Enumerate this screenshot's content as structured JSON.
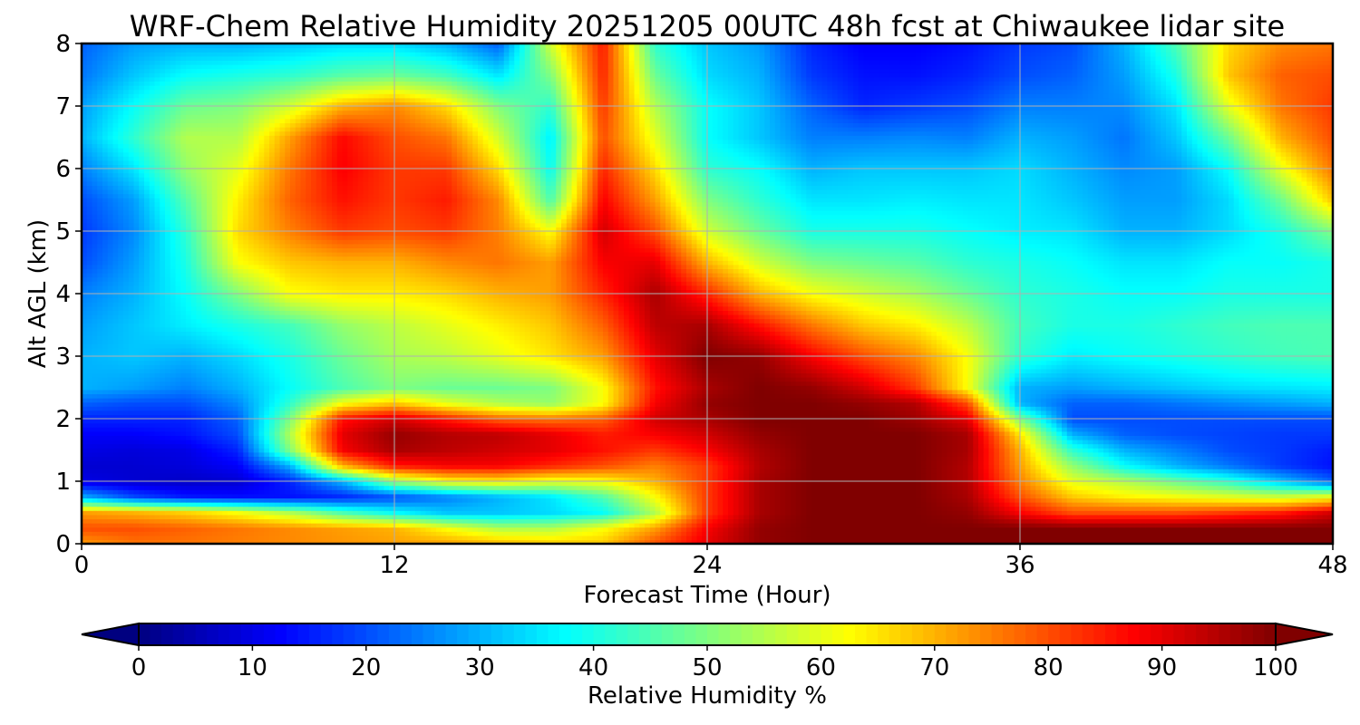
{
  "chart_data": {
    "type": "heatmap",
    "title": "WRF-Chem Relative Humidity 20251205 00UTC 48h fcst at Chiwaukee lidar site",
    "xlabel": "Forecast Time (Hour)",
    "ylabel": "Alt AGL (km)",
    "xlim": [
      0,
      48
    ],
    "ylim": [
      0,
      8
    ],
    "xticks": [
      0,
      12,
      24,
      36,
      48
    ],
    "yticks": [
      0,
      1,
      2,
      3,
      4,
      5,
      6,
      7,
      8
    ],
    "grid": true,
    "colorbar": {
      "label": "Relative Humidity %",
      "orientation": "horizontal",
      "range": [
        0,
        100
      ],
      "ticks": [
        0,
        10,
        20,
        30,
        40,
        50,
        60,
        70,
        80,
        90,
        100
      ],
      "extend": "both",
      "colormap": "jet"
    },
    "z_units": "%",
    "x": [
      0,
      2,
      4,
      6,
      8,
      10,
      12,
      14,
      16,
      18,
      20,
      22,
      24,
      26,
      28,
      30,
      32,
      34,
      36,
      38,
      40,
      42,
      44,
      46,
      48
    ],
    "y": [
      0,
      0.25,
      0.5,
      0.75,
      1,
      1.25,
      1.5,
      1.75,
      2,
      2.25,
      2.5,
      3,
      3.5,
      4,
      4.5,
      5,
      5.5,
      6,
      6.5,
      7,
      7.5,
      8
    ],
    "z": [
      [
        72,
        76,
        76,
        75,
        74,
        73,
        72,
        72,
        70,
        68,
        68,
        80,
        90,
        98,
        100,
        100,
        100,
        100,
        100,
        100,
        100,
        100,
        100,
        100,
        100
      ],
      [
        80,
        80,
        78,
        76,
        74,
        72,
        70,
        62,
        55,
        55,
        62,
        72,
        88,
        98,
        100,
        100,
        100,
        100,
        100,
        100,
        100,
        100,
        100,
        100,
        100
      ],
      [
        72,
        70,
        67,
        62,
        55,
        45,
        38,
        32,
        32,
        34,
        38,
        55,
        82,
        96,
        100,
        100,
        100,
        98,
        88,
        80,
        80,
        80,
        82,
        85,
        92
      ],
      [
        30,
        20,
        15,
        14,
        14,
        16,
        20,
        25,
        30,
        35,
        45,
        62,
        82,
        96,
        100,
        100,
        100,
        96,
        80,
        68,
        64,
        62,
        60,
        58,
        62
      ],
      [
        10,
        8,
        7,
        8,
        16,
        30,
        52,
        62,
        64,
        60,
        62,
        70,
        82,
        96,
        100,
        100,
        100,
        95,
        75,
        60,
        55,
        48,
        42,
        32,
        22
      ],
      [
        8,
        8,
        9,
        12,
        30,
        70,
        85,
        88,
        88,
        84,
        80,
        75,
        82,
        95,
        100,
        100,
        100,
        95,
        72,
        52,
        38,
        30,
        24,
        18,
        14
      ],
      [
        10,
        9,
        10,
        16,
        50,
        88,
        96,
        94,
        92,
        90,
        86,
        82,
        88,
        96,
        100,
        100,
        100,
        96,
        70,
        42,
        30,
        25,
        20,
        18,
        15
      ],
      [
        12,
        12,
        14,
        20,
        55,
        90,
        98,
        95,
        94,
        90,
        85,
        88,
        92,
        98,
        100,
        100,
        100,
        96,
        65,
        30,
        22,
        20,
        19,
        18,
        18
      ],
      [
        16,
        16,
        16,
        22,
        50,
        86,
        92,
        85,
        78,
        76,
        78,
        92,
        96,
        100,
        100,
        100,
        97,
        90,
        50,
        20,
        20,
        20,
        20,
        20,
        20
      ],
      [
        22,
        20,
        20,
        26,
        42,
        62,
        68,
        60,
        55,
        52,
        62,
        88,
        98,
        100,
        100,
        98,
        95,
        80,
        30,
        22,
        22,
        24,
        26,
        28,
        30
      ],
      [
        30,
        28,
        25,
        30,
        38,
        45,
        50,
        48,
        48,
        50,
        62,
        86,
        96,
        100,
        98,
        92,
        82,
        62,
        30,
        28,
        30,
        32,
        34,
        35,
        36
      ],
      [
        30,
        32,
        30,
        34,
        40,
        48,
        54,
        56,
        60,
        65,
        72,
        90,
        100,
        98,
        88,
        80,
        74,
        62,
        42,
        36,
        38,
        40,
        42,
        44,
        45
      ],
      [
        28,
        32,
        36,
        40,
        44,
        52,
        56,
        60,
        64,
        68,
        78,
        94,
        96,
        86,
        76,
        68,
        64,
        56,
        44,
        40,
        40,
        42,
        44,
        45,
        45
      ],
      [
        25,
        30,
        38,
        50,
        62,
        64,
        64,
        66,
        70,
        72,
        84,
        96,
        84,
        70,
        62,
        58,
        54,
        48,
        42,
        40,
        38,
        38,
        40,
        40,
        40
      ],
      [
        20,
        28,
        40,
        62,
        68,
        70,
        70,
        74,
        76,
        72,
        88,
        90,
        70,
        58,
        50,
        48,
        46,
        42,
        40,
        38,
        35,
        35,
        38,
        38,
        40
      ],
      [
        18,
        26,
        42,
        66,
        75,
        82,
        80,
        82,
        75,
        62,
        92,
        80,
        58,
        48,
        40,
        40,
        40,
        38,
        36,
        35,
        30,
        30,
        34,
        40,
        50
      ],
      [
        20,
        28,
        46,
        64,
        78,
        86,
        82,
        85,
        74,
        45,
        88,
        72,
        50,
        42,
        35,
        35,
        36,
        35,
        35,
        32,
        28,
        28,
        34,
        48,
        68
      ],
      [
        25,
        35,
        52,
        60,
        76,
        88,
        82,
        82,
        66,
        38,
        84,
        66,
        42,
        38,
        30,
        32,
        32,
        32,
        34,
        30,
        26,
        28,
        38,
        60,
        76
      ],
      [
        30,
        42,
        55,
        55,
        72,
        87,
        80,
        76,
        58,
        36,
        80,
        60,
        38,
        32,
        25,
        25,
        26,
        25,
        30,
        28,
        24,
        32,
        48,
        70,
        80
      ],
      [
        28,
        38,
        48,
        50,
        58,
        70,
        74,
        66,
        50,
        42,
        82,
        55,
        38,
        32,
        22,
        16,
        18,
        20,
        25,
        25,
        26,
        35,
        60,
        76,
        82
      ],
      [
        24,
        32,
        38,
        40,
        42,
        46,
        48,
        44,
        35,
        50,
        84,
        48,
        34,
        30,
        18,
        14,
        14,
        16,
        20,
        22,
        28,
        40,
        68,
        78,
        80
      ],
      [
        22,
        28,
        30,
        30,
        32,
        34,
        34,
        30,
        22,
        58,
        85,
        42,
        32,
        28,
        16,
        12,
        12,
        14,
        18,
        20,
        30,
        45,
        66,
        74,
        76
      ]
    ]
  }
}
